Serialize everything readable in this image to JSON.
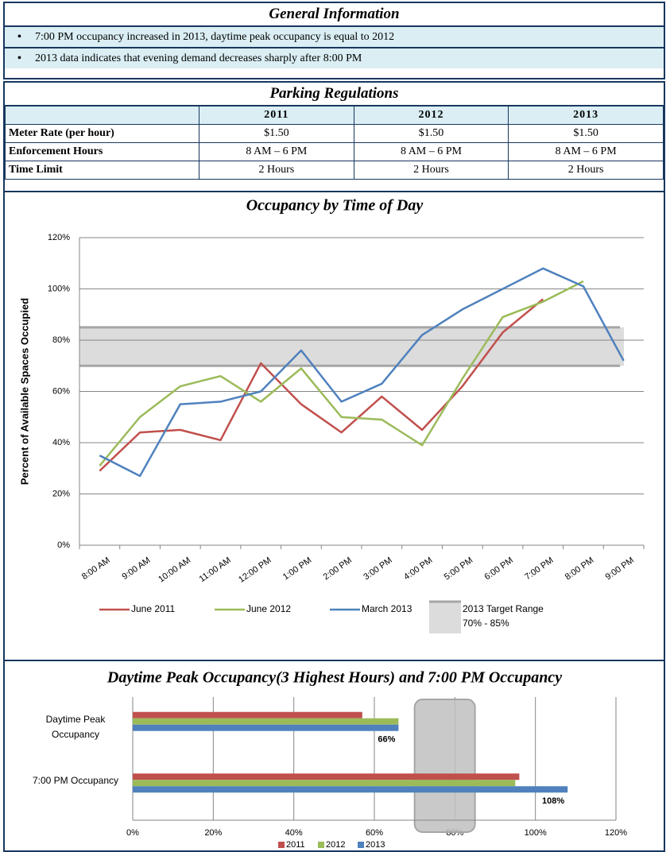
{
  "general_information": {
    "title": "General Information",
    "bullets": [
      "7:00 PM occupancy increased in 2013, daytime peak occupancy is equal to 2012",
      "2013 data indicates that evening demand decreases sharply after 8:00 PM"
    ]
  },
  "parking_regulations": {
    "title": "Parking Regulations",
    "columns": [
      "2011",
      "2012",
      "2013"
    ],
    "rows": [
      {
        "label": "Meter Rate (per hour)",
        "values": [
          "$1.50",
          "$1.50",
          "$1.50"
        ]
      },
      {
        "label": "Enforcement Hours",
        "values": [
          "8 AM – 6 PM",
          "8 AM – 6 PM",
          "8 AM – 6 PM"
        ]
      },
      {
        "label": "Time Limit",
        "values": [
          "2 Hours",
          "2 Hours",
          "2 Hours"
        ]
      }
    ]
  },
  "chart_data": [
    {
      "type": "line",
      "title": "Occupancy by Time of Day",
      "y_label": "Percent of Available Spaces Occupied",
      "categories": [
        "8:00 AM",
        "9:00 AM",
        "10:00 AM",
        "11:00 AM",
        "12:00 PM",
        "1:00 PM",
        "2:00 PM",
        "3:00 PM",
        "4:00 PM",
        "5:00 PM",
        "6:00 PM",
        "7:00 PM",
        "8:00 PM",
        "9:00 PM"
      ],
      "series": [
        {
          "name": "June 2011",
          "color": "#c0504d",
          "values": [
            29,
            44,
            45,
            41,
            71,
            55,
            44,
            58,
            45,
            62,
            83,
            96,
            null,
            null
          ]
        },
        {
          "name": "June 2012",
          "color": "#9bbb59",
          "values": [
            31,
            50,
            62,
            66,
            56,
            69,
            50,
            49,
            39,
            65,
            89,
            95,
            103,
            null
          ]
        },
        {
          "name": "March 2013",
          "color": "#4f81bd",
          "values": [
            35,
            27,
            55,
            56,
            60,
            76,
            56,
            63,
            82,
            92,
            100,
            108,
            101,
            72
          ]
        }
      ],
      "target_range": {
        "name": "2013 Target Range",
        "label": "70% - 85%",
        "range": [
          70,
          85
        ],
        "color": "#dcdcdc"
      },
      "ylim": [
        0,
        120
      ],
      "yticks": [
        {
          "value": 0,
          "label": "0%"
        },
        {
          "value": 20,
          "label": "20%"
        },
        {
          "value": 40,
          "label": "40%"
        },
        {
          "value": 60,
          "label": "60%"
        },
        {
          "value": 80,
          "label": "80%"
        },
        {
          "value": 100,
          "label": "100%"
        },
        {
          "value": 120,
          "label": "120%"
        }
      ],
      "grid": true,
      "legend": "bottom"
    },
    {
      "type": "bar",
      "orientation": "horizontal",
      "title": "Daytime Peak Occupancy(3 Highest Hours) and 7:00 PM Occupancy",
      "categories": [
        "Daytime Peak Occupancy",
        "7:00 PM Occupancy"
      ],
      "series": [
        {
          "name": "2011",
          "color": "#c0504d",
          "values": [
            57,
            96
          ]
        },
        {
          "name": "2012",
          "color": "#9bbb59",
          "values": [
            66,
            95
          ]
        },
        {
          "name": "2013",
          "color": "#4f81bd",
          "values": [
            66,
            108
          ],
          "value_labels": [
            "66%",
            "108%"
          ]
        }
      ],
      "target_range": {
        "range": [
          70,
          85
        ],
        "color": "#bfbfbf"
      },
      "xlim": [
        0,
        120
      ],
      "xticks": [
        {
          "value": 0,
          "label": "0%"
        },
        {
          "value": 20,
          "label": "20%"
        },
        {
          "value": 40,
          "label": "40%"
        },
        {
          "value": 60,
          "label": "60%"
        },
        {
          "value": 80,
          "label": "80%"
        },
        {
          "value": 100,
          "label": "100%"
        },
        {
          "value": 120,
          "label": "120%"
        }
      ],
      "grid": true,
      "legend": "bottom"
    }
  ]
}
